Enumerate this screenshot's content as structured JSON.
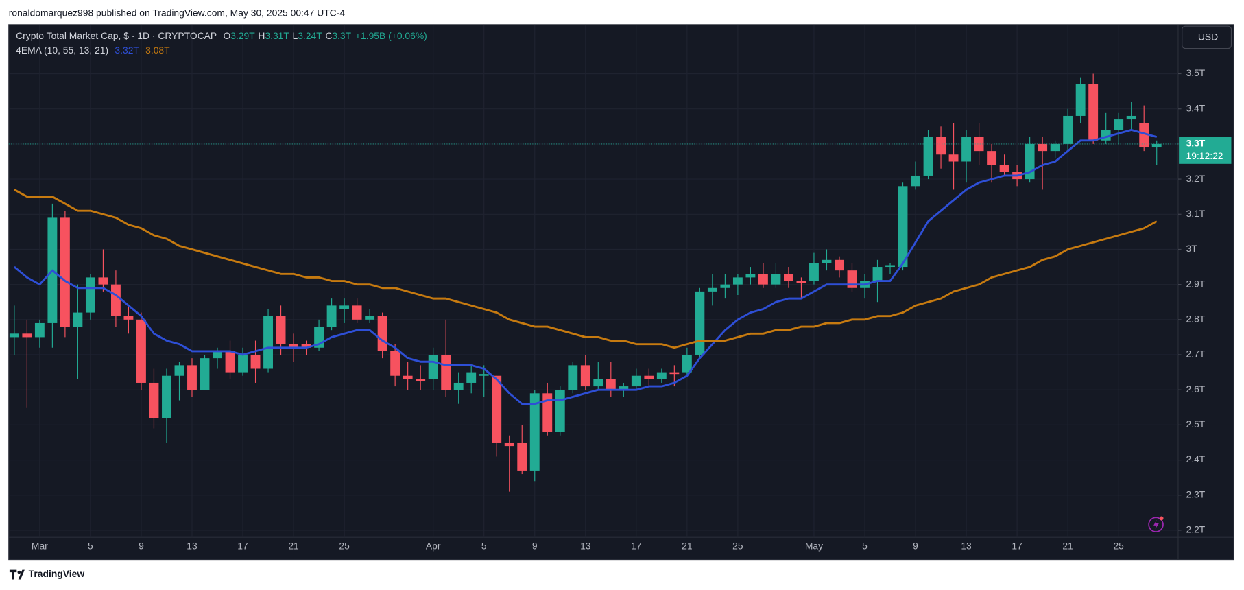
{
  "publisher": "ronaldomarquez998 published on TradingView.com, May 30, 2025 00:47 UTC-4",
  "footer": "TradingView",
  "chart_data": {
    "type": "candlestick",
    "title": "Crypto Total Market Cap, $ · 1D · CRYPTOCAP",
    "header_values": [
      {
        "key": "O",
        "label": "3.29T"
      },
      {
        "key": "H",
        "label": "3.31T"
      },
      {
        "key": "L",
        "label": "3.24T"
      },
      {
        "key": "C",
        "label": "3.3T"
      }
    ],
    "change": "+1.95B (+0.06%)",
    "currency": "USD",
    "price_label": "3.3T",
    "countdown": "19:12:22",
    "up_color": "#22ab94",
    "down_color": "#f7525f",
    "grid": true,
    "ylim": [
      2.18,
      3.64
    ],
    "yticks": [
      {
        "value": 2.2,
        "label": "2.2T"
      },
      {
        "value": 2.3,
        "label": "2.3T"
      },
      {
        "value": 2.4,
        "label": "2.4T"
      },
      {
        "value": 2.5,
        "label": "2.5T"
      },
      {
        "value": 2.6,
        "label": "2.6T"
      },
      {
        "value": 2.7,
        "label": "2.7T"
      },
      {
        "value": 2.8,
        "label": "2.8T"
      },
      {
        "value": 2.9,
        "label": "2.9T"
      },
      {
        "value": 3,
        "label": "3T"
      },
      {
        "value": 3.1,
        "label": "3.1T"
      },
      {
        "value": 3.2,
        "label": "3.2T"
      },
      {
        "value": 3.3,
        "label": "3.3T"
      },
      {
        "value": 3.4,
        "label": "3.4T"
      },
      {
        "value": 3.5,
        "label": "3.5T"
      }
    ],
    "categories": [
      null,
      null,
      "Mar",
      null,
      null,
      null,
      "5",
      null,
      null,
      null,
      "9",
      null,
      null,
      null,
      "13",
      null,
      null,
      null,
      "17",
      null,
      null,
      null,
      "21",
      null,
      null,
      null,
      "25",
      null,
      null,
      null,
      null,
      null,
      null,
      "Apr",
      null,
      null,
      null,
      "5",
      null,
      null,
      null,
      "9",
      null,
      null,
      null,
      "13",
      null,
      null,
      null,
      "17",
      null,
      null,
      null,
      "21",
      null,
      null,
      null,
      "25",
      null,
      null,
      null,
      null,
      null,
      "May",
      null,
      null,
      null,
      "5",
      null,
      null,
      null,
      "9",
      null,
      null,
      null,
      "13",
      null,
      null,
      null,
      "17",
      null,
      null,
      null,
      "21",
      null,
      null,
      null,
      "25",
      null,
      null,
      null
    ],
    "open": [
      2.75,
      2.76,
      2.75,
      2.79,
      3.09,
      2.78,
      2.82,
      2.92,
      2.9,
      2.81,
      2.8,
      2.62,
      2.52,
      2.64,
      2.67,
      2.6,
      2.69,
      2.71,
      2.65,
      2.7,
      2.66,
      2.81,
      2.73,
      2.73,
      2.72,
      2.78,
      2.83,
      2.84,
      2.8,
      2.81,
      2.71,
      2.64,
      2.63,
      2.63,
      2.7,
      2.6,
      2.62,
      2.64,
      2.64,
      2.45,
      2.45,
      2.37,
      2.59,
      2.48,
      2.6,
      2.67,
      2.61,
      2.63,
      2.6,
      2.61,
      2.64,
      2.63,
      2.65,
      2.65,
      2.7,
      2.88,
      2.89,
      2.9,
      2.92,
      2.93,
      2.9,
      2.93,
      2.91,
      2.91,
      2.96,
      2.97,
      2.94,
      2.89,
      2.91,
      2.95,
      2.95,
      3.18,
      3.21,
      3.32,
      3.27,
      3.25,
      3.32,
      3.28,
      3.24,
      3.22,
      3.2,
      3.3,
      3.28,
      3.3,
      3.38,
      3.47,
      3.31,
      3.34,
      3.37,
      3.36,
      3.29
    ],
    "high": [
      2.84,
      2.8,
      2.8,
      3.13,
      3.11,
      2.9,
      2.93,
      3.0,
      2.94,
      2.84,
      2.82,
      2.66,
      2.66,
      2.68,
      2.69,
      2.7,
      2.72,
      2.74,
      2.72,
      2.74,
      2.83,
      2.84,
      2.76,
      2.74,
      2.8,
      2.86,
      2.86,
      2.86,
      2.83,
      2.82,
      2.73,
      2.68,
      2.67,
      2.72,
      2.8,
      2.65,
      2.67,
      2.67,
      2.64,
      2.47,
      2.5,
      2.6,
      2.62,
      2.61,
      2.68,
      2.7,
      2.68,
      2.68,
      2.62,
      2.66,
      2.66,
      2.66,
      2.67,
      2.72,
      2.89,
      2.93,
      2.93,
      2.93,
      2.95,
      2.96,
      2.96,
      2.95,
      2.92,
      2.99,
      3.0,
      2.98,
      2.96,
      2.93,
      2.97,
      2.96,
      3.19,
      3.25,
      3.34,
      3.35,
      3.36,
      3.34,
      3.36,
      3.3,
      3.27,
      3.24,
      3.32,
      3.32,
      3.31,
      3.4,
      3.49,
      3.5,
      3.39,
      3.39,
      3.42,
      3.41,
      3.31
    ],
    "low": [
      2.7,
      2.55,
      2.72,
      2.72,
      2.75,
      2.63,
      2.8,
      2.88,
      2.78,
      2.76,
      2.6,
      2.49,
      2.45,
      2.57,
      2.58,
      2.6,
      2.66,
      2.63,
      2.64,
      2.62,
      2.65,
      2.7,
      2.68,
      2.7,
      2.71,
      2.77,
      2.79,
      2.79,
      2.79,
      2.69,
      2.61,
      2.6,
      2.6,
      2.6,
      2.58,
      2.56,
      2.59,
      2.58,
      2.41,
      2.31,
      2.36,
      2.34,
      2.47,
      2.47,
      2.59,
      2.6,
      2.6,
      2.58,
      2.58,
      2.6,
      2.61,
      2.62,
      2.61,
      2.64,
      2.69,
      2.84,
      2.86,
      2.87,
      2.9,
      2.89,
      2.89,
      2.89,
      2.86,
      2.9,
      2.94,
      2.92,
      2.88,
      2.86,
      2.85,
      2.93,
      2.94,
      3.17,
      3.2,
      3.23,
      3.17,
      3.19,
      3.24,
      3.19,
      3.21,
      3.18,
      3.19,
      3.17,
      3.26,
      3.28,
      3.36,
      3.3,
      3.3,
      3.3,
      3.34,
      3.28,
      3.24
    ],
    "close": [
      2.76,
      2.75,
      2.79,
      3.09,
      2.78,
      2.82,
      2.92,
      2.9,
      2.81,
      2.8,
      2.62,
      2.52,
      2.64,
      2.67,
      2.6,
      2.69,
      2.71,
      2.65,
      2.7,
      2.66,
      2.81,
      2.73,
      2.72,
      2.72,
      2.78,
      2.84,
      2.84,
      2.8,
      2.81,
      2.71,
      2.64,
      2.63,
      2.625,
      2.7,
      2.6,
      2.62,
      2.65,
      2.645,
      2.45,
      2.44,
      2.37,
      2.59,
      2.48,
      2.6,
      2.67,
      2.61,
      2.63,
      2.6,
      2.61,
      2.64,
      2.63,
      2.65,
      2.645,
      2.7,
      2.88,
      2.89,
      2.9,
      2.92,
      2.93,
      2.9,
      2.93,
      2.91,
      2.905,
      2.96,
      2.97,
      2.94,
      2.89,
      2.91,
      2.95,
      2.955,
      3.18,
      3.21,
      3.32,
      3.27,
      3.25,
      3.32,
      3.28,
      3.24,
      3.22,
      3.2,
      3.3,
      3.28,
      3.3,
      3.38,
      3.47,
      3.31,
      3.34,
      3.37,
      3.38,
      3.29,
      3.3
    ],
    "indicator": {
      "label": "4EMA (10, 55, 13, 21)",
      "series": [
        {
          "color": "#2e4fd6",
          "value_label": "3.32T",
          "values": [
            2.95,
            2.92,
            2.9,
            2.94,
            2.91,
            2.89,
            2.89,
            2.89,
            2.87,
            2.84,
            2.81,
            2.76,
            2.74,
            2.73,
            2.71,
            2.71,
            2.71,
            2.71,
            2.7,
            2.71,
            2.72,
            2.72,
            2.72,
            2.72,
            2.73,
            2.75,
            2.76,
            2.77,
            2.77,
            2.74,
            2.72,
            2.69,
            2.68,
            2.68,
            2.67,
            2.67,
            2.67,
            2.66,
            2.63,
            2.59,
            2.56,
            2.56,
            2.57,
            2.57,
            2.58,
            2.59,
            2.6,
            2.6,
            2.6,
            2.6,
            2.61,
            2.61,
            2.62,
            2.64,
            2.69,
            2.73,
            2.77,
            2.8,
            2.82,
            2.83,
            2.85,
            2.86,
            2.86,
            2.88,
            2.9,
            2.9,
            2.9,
            2.9,
            2.91,
            2.91,
            2.96,
            3.02,
            3.08,
            3.11,
            3.14,
            3.17,
            3.19,
            3.2,
            3.21,
            3.21,
            3.22,
            3.24,
            3.25,
            3.28,
            3.31,
            3.31,
            3.32,
            3.33,
            3.34,
            3.33,
            3.32
          ]
        },
        {
          "color": "#c67a10",
          "value_label": "3.08T",
          "values": [
            3.17,
            3.15,
            3.15,
            3.15,
            3.13,
            3.11,
            3.11,
            3.1,
            3.09,
            3.07,
            3.06,
            3.04,
            3.03,
            3.01,
            3.0,
            2.99,
            2.98,
            2.97,
            2.96,
            2.95,
            2.94,
            2.93,
            2.93,
            2.92,
            2.92,
            2.91,
            2.91,
            2.9,
            2.9,
            2.89,
            2.89,
            2.88,
            2.87,
            2.86,
            2.86,
            2.85,
            2.84,
            2.83,
            2.82,
            2.8,
            2.79,
            2.78,
            2.78,
            2.77,
            2.76,
            2.75,
            2.75,
            2.74,
            2.74,
            2.73,
            2.73,
            2.73,
            2.72,
            2.73,
            2.74,
            2.74,
            2.74,
            2.75,
            2.76,
            2.76,
            2.77,
            2.77,
            2.78,
            2.78,
            2.79,
            2.79,
            2.8,
            2.8,
            2.81,
            2.81,
            2.82,
            2.84,
            2.85,
            2.86,
            2.88,
            2.89,
            2.9,
            2.92,
            2.93,
            2.94,
            2.95,
            2.97,
            2.98,
            3.0,
            3.01,
            3.02,
            3.03,
            3.04,
            3.05,
            3.06,
            3.08
          ]
        }
      ]
    }
  }
}
